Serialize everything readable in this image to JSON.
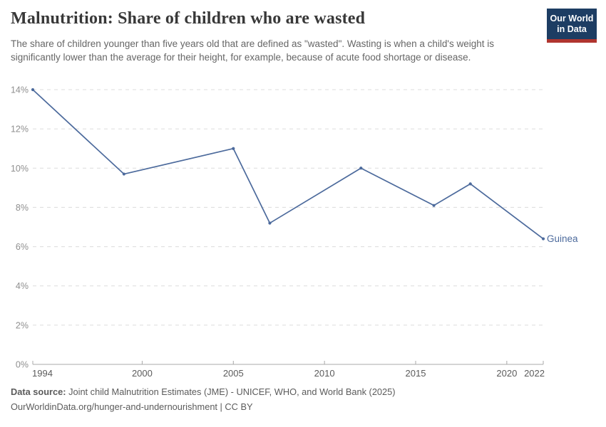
{
  "header": {
    "title": "Malnutrition: Share of children who are wasted",
    "subtitle": "The share of children younger than five years old that are defined as \"wasted\". Wasting is when a child's weight is significantly lower than the average for their height, for example, because of acute food shortage or disease.",
    "logo": {
      "line1": "Our World",
      "line2": "in Data"
    }
  },
  "chart_data": {
    "type": "line",
    "title": "Malnutrition: Share of children who are wasted",
    "x": [
      1994,
      1999,
      2005,
      2007,
      2012,
      2016,
      2018,
      2022
    ],
    "series": [
      {
        "name": "Guinea",
        "color": "#4C6A9C",
        "values": [
          14,
          9.7,
          11,
          7.2,
          10,
          8.1,
          9.2,
          6.4
        ]
      }
    ],
    "xlabel": "",
    "ylabel": "",
    "x_axis": {
      "min": 1994,
      "max": 2022,
      "ticks": [
        1994,
        2000,
        2005,
        2010,
        2015,
        2020,
        2022
      ],
      "tick_labels": [
        "1994",
        "2000",
        "2005",
        "2010",
        "2015",
        "2020",
        "2022"
      ]
    },
    "y_axis": {
      "min": 0,
      "max": 14,
      "unit": "%",
      "ticks": [
        0,
        2,
        4,
        6,
        8,
        10,
        12,
        14
      ],
      "tick_labels": [
        "0%",
        "2%",
        "4%",
        "6%",
        "8%",
        "10%",
        "12%",
        "14%"
      ]
    },
    "grid": true,
    "legend_position": "end-of-line"
  },
  "footer": {
    "data_source_label": "Data source:",
    "data_source_text": " Joint child Malnutrition Estimates (JME) - UNICEF, WHO, and World Bank (2025)",
    "attribution": "OurWorldinData.org/hunger-and-undernourishment | CC BY"
  },
  "colors": {
    "line": "#4C6A9C",
    "grid": "#dcdcdc",
    "axis": "#a8a8a8",
    "y_tick_label": "#8f8f8f",
    "x_tick_label": "#5b5b5b",
    "title": "#383838",
    "subtitle": "#666666",
    "footer": "#5b5b5b",
    "logo_bg": "#1d3d63",
    "logo_accent": "#b0352f"
  }
}
